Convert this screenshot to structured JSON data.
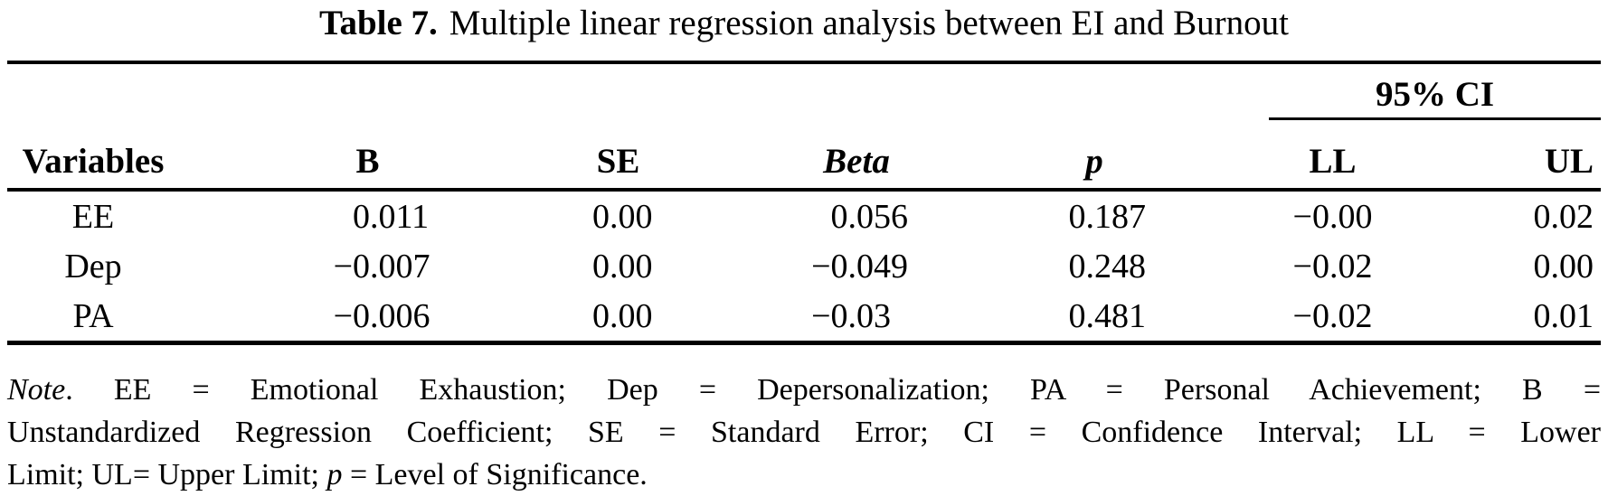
{
  "caption": {
    "label": "Table 7.",
    "text": "Multiple linear regression analysis between EI and Burnout"
  },
  "table": {
    "group_header": "95% CI",
    "columns": [
      "Variables",
      "B",
      "SE",
      "Beta",
      "p",
      "LL",
      "UL"
    ],
    "rows": [
      {
        "variable": "EE",
        "b": "0.011",
        "se": "0.00",
        "beta": "0.056",
        "p": "0.187",
        "ll": "−0.00",
        "ul": "0.02"
      },
      {
        "variable": "Dep",
        "b": "−0.007",
        "se": "0.00",
        "beta": "−0.049",
        "p": "0.248",
        "ll": "−0.02",
        "ul": "0.00"
      },
      {
        "variable": "PA",
        "b": "−0.006",
        "se": "0.00",
        "beta": "−0.03",
        "p": "0.481",
        "ll": "−0.02",
        "ul": "0.01"
      }
    ]
  },
  "note": {
    "line1_label": "Note",
    "line1_rest": ". EE = Emotional Exhaustion; Dep = Depersonalization; PA = Personal Achievement; B =",
    "line2": "Unstandardized Regression Coefficient; SE = Standard Error; CI = Confidence Interval; LL = Lower",
    "line3_pre": "Limit; UL= Upper Limit; ",
    "line3_p": "p",
    "line3_post": " = Level of Significance."
  }
}
